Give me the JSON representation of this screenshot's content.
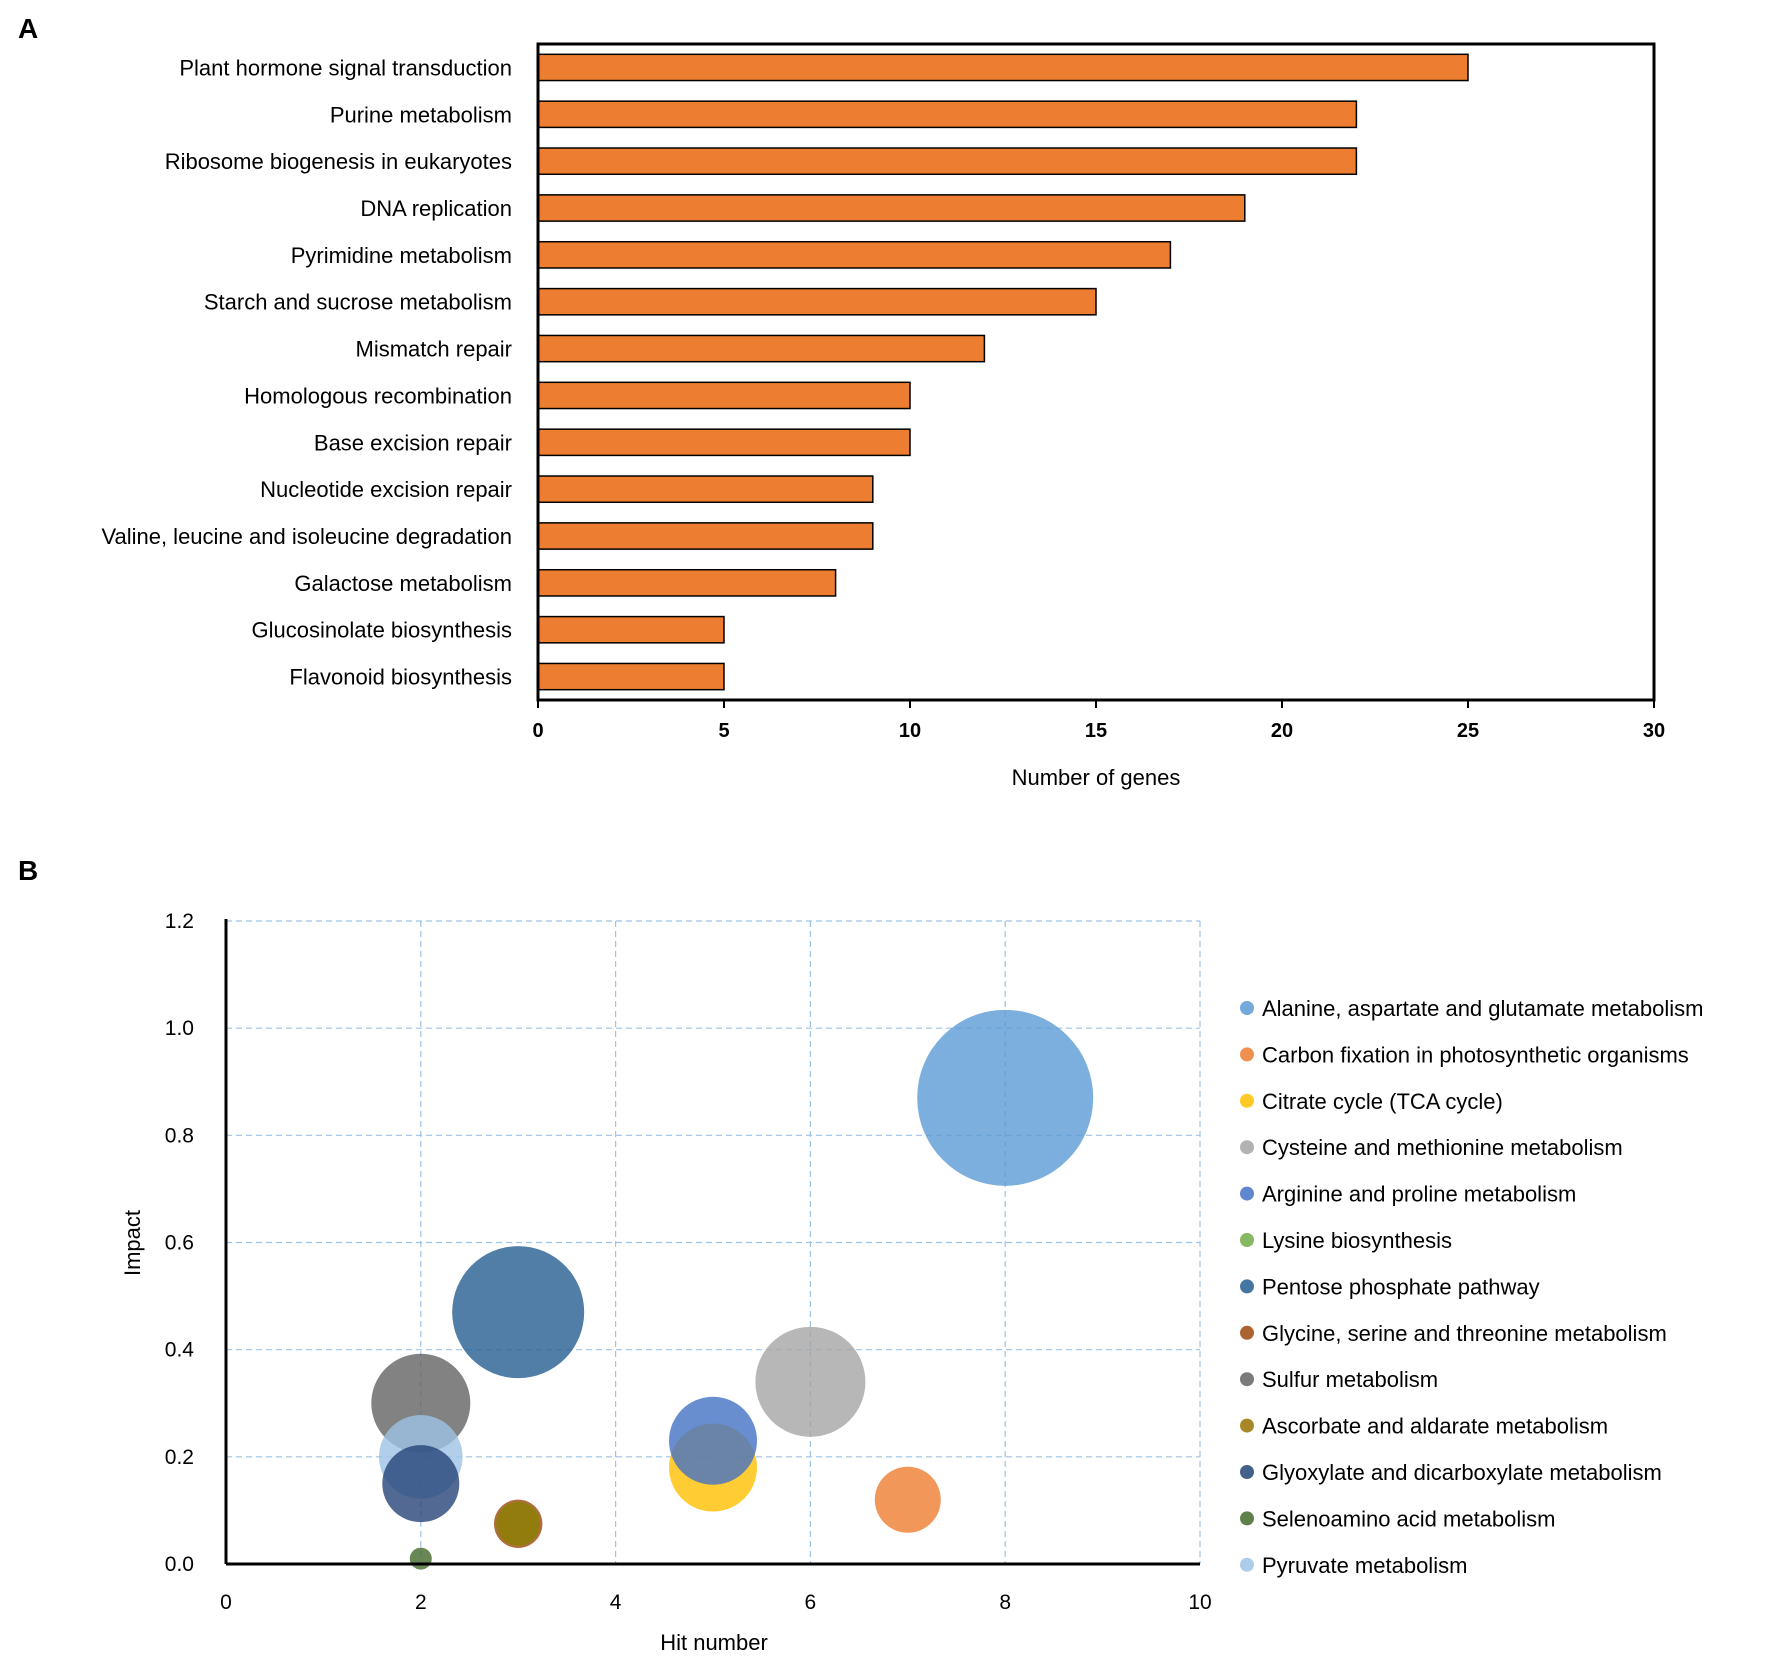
{
  "panels": {
    "a_label": "A",
    "b_label": "B"
  },
  "colors": {
    "bar_fill": "#ED7D31",
    "bar_stroke": "#000000",
    "grid": "#9DC3E6",
    "axis": "#000000"
  },
  "chart_data": [
    {
      "type": "bar",
      "orientation": "horizontal",
      "panel": "A",
      "title": "",
      "categories": [
        "Plant hormone signal transduction",
        "Purine metabolism",
        "Ribosome biogenesis in eukaryotes",
        "DNA replication",
        "Pyrimidine metabolism",
        "Starch and sucrose metabolism",
        "Mismatch repair",
        "Homologous recombination",
        "Base excision repair",
        "Nucleotide excision repair",
        "Valine, leucine and isoleucine degradation",
        "Galactose metabolism",
        "Glucosinolate biosynthesis",
        "Flavonoid biosynthesis"
      ],
      "values": [
        25,
        22,
        22,
        19,
        17,
        15,
        12,
        10,
        10,
        9,
        9,
        8,
        5,
        5
      ],
      "xlabel": "Number of genes",
      "ylabel": "",
      "xlim": [
        0,
        30
      ],
      "xticks": [
        "0",
        "5",
        "10",
        "15",
        "20",
        "25",
        "30"
      ],
      "grid": false
    },
    {
      "type": "scatter",
      "subtype": "bubble",
      "panel": "B",
      "title": "",
      "xlabel": "Hit number",
      "ylabel": "Impact",
      "xlim": [
        0,
        10
      ],
      "ylim": [
        0,
        1.2
      ],
      "xticks": [
        "0",
        "2",
        "4",
        "6",
        "8",
        "10"
      ],
      "yticks": [
        "0.0",
        "0.2",
        "0.4",
        "0.6",
        "0.8",
        "1.0",
        "1.2"
      ],
      "grid": true,
      "legend_position": "right",
      "series": [
        {
          "name": "Alanine, aspartate and glutamate metabolism",
          "color": "#5B9BD5",
          "x": 8,
          "y": 0.87,
          "size": 8
        },
        {
          "name": "Carbon fixation in photosynthetic organisms",
          "color": "#ED7D31",
          "x": 7,
          "y": 0.12,
          "size": 3
        },
        {
          "name": "Citrate cycle (TCA cycle)",
          "color": "#FFC000",
          "x": 5,
          "y": 0.18,
          "size": 4
        },
        {
          "name": "Cysteine and methionine metabolism",
          "color": "#A5A5A5",
          "x": 6,
          "y": 0.34,
          "size": 5
        },
        {
          "name": "Arginine and proline metabolism",
          "color": "#4472C4",
          "x": 5,
          "y": 0.23,
          "size": 4
        },
        {
          "name": "Lysine biosynthesis",
          "color": "#70AD47",
          "x": 3,
          "y": 0.075,
          "size": 2
        },
        {
          "name": "Pentose phosphate pathway",
          "color": "#255E91",
          "x": 3,
          "y": 0.47,
          "size": 6
        },
        {
          "name": "Glycine, serine and threonine metabolism",
          "color": "#9E480E",
          "x": 3,
          "y": 0.075,
          "size": 2.2
        },
        {
          "name": "Sulfur metabolism",
          "color": "#636363",
          "x": 2,
          "y": 0.3,
          "size": 4.5
        },
        {
          "name": "Ascorbate and aldarate metabolism",
          "color": "#997300",
          "x": 3,
          "y": 0.075,
          "size": 2
        },
        {
          "name": "Glyoxylate and dicarboxylate metabolism",
          "color": "#264478",
          "x": 2,
          "y": 0.15,
          "size": 3.5
        },
        {
          "name": "Selenoamino acid metabolism",
          "color": "#43682B",
          "x": 2,
          "y": 0.01,
          "size": 1
        },
        {
          "name": "Pyruvate metabolism",
          "color": "#9DC3E6",
          "x": 2,
          "y": 0.2,
          "size": 3.8
        }
      ]
    }
  ]
}
